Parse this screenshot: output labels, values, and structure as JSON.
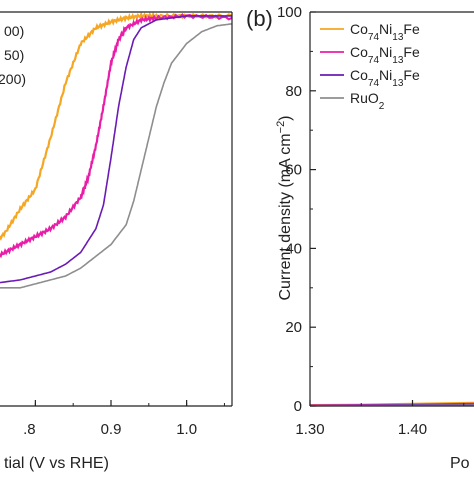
{
  "chart_data": [
    {
      "type": "line",
      "panel_label": "",
      "title": "",
      "xlabel": "tial (V vs RHE)",
      "ylabel": "",
      "xlim": [
        0.74,
        1.06
      ],
      "ylim": [
        0,
        1.0
      ],
      "x_ticks": [
        ".8",
        "0.9",
        "1.0"
      ],
      "x_tick_values": [
        0.8,
        0.9,
        1.0
      ],
      "legend": {
        "placement": "top-left (clipped)",
        "entries": [
          "00)",
          "50)",
          "200)"
        ]
      },
      "series": [
        {
          "name": "",
          "color": "#F5A623",
          "x": [
            0.74,
            0.76,
            0.78,
            0.8,
            0.82,
            0.84,
            0.86,
            0.88,
            0.9,
            0.92,
            0.94,
            0.96,
            1.0,
            1.06
          ],
          "y": [
            0.4,
            0.44,
            0.5,
            0.55,
            0.68,
            0.82,
            0.92,
            0.96,
            0.975,
            0.985,
            0.99,
            0.99,
            0.99,
            0.99
          ]
        },
        {
          "name": "",
          "color": "#E91EA8",
          "x": [
            0.74,
            0.76,
            0.78,
            0.8,
            0.82,
            0.84,
            0.86,
            0.87,
            0.88,
            0.89,
            0.9,
            0.91,
            0.92,
            0.94,
            0.96,
            1.0,
            1.06
          ],
          "y": [
            0.37,
            0.39,
            0.41,
            0.43,
            0.45,
            0.48,
            0.53,
            0.58,
            0.66,
            0.76,
            0.87,
            0.93,
            0.96,
            0.98,
            0.985,
            0.99,
            0.985
          ]
        },
        {
          "name": "",
          "color": "#6A1BB5",
          "x": [
            0.74,
            0.78,
            0.8,
            0.82,
            0.84,
            0.86,
            0.88,
            0.89,
            0.9,
            0.91,
            0.92,
            0.93,
            0.94,
            0.96,
            1.0,
            1.06
          ],
          "y": [
            0.31,
            0.32,
            0.33,
            0.34,
            0.36,
            0.39,
            0.45,
            0.51,
            0.63,
            0.76,
            0.86,
            0.93,
            0.96,
            0.98,
            0.99,
            0.99
          ]
        },
        {
          "name": "",
          "color": "#8E8E8E",
          "x": [
            0.74,
            0.78,
            0.8,
            0.82,
            0.84,
            0.86,
            0.88,
            0.9,
            0.92,
            0.93,
            0.94,
            0.95,
            0.96,
            0.97,
            0.98,
            1.0,
            1.02,
            1.04,
            1.06
          ],
          "y": [
            0.3,
            0.3,
            0.31,
            0.32,
            0.33,
            0.35,
            0.38,
            0.41,
            0.46,
            0.52,
            0.6,
            0.68,
            0.76,
            0.82,
            0.87,
            0.92,
            0.95,
            0.965,
            0.97
          ]
        }
      ]
    },
    {
      "type": "line",
      "panel_label": "(b)",
      "title": "",
      "xlabel": "Po",
      "ylabel": "Current density (mA cm⁻²)",
      "ylabel_main": "Current density (mA cm",
      "ylabel_sup": "−2",
      "ylabel_close": ")",
      "xlim": [
        1.3,
        1.46
      ],
      "ylim": [
        0,
        100
      ],
      "x_ticks": [
        "1.30",
        "1.40"
      ],
      "x_tick_values": [
        1.3,
        1.4
      ],
      "y_ticks": [
        "0",
        "20",
        "40",
        "60",
        "80",
        "100"
      ],
      "y_tick_values": [
        0,
        20,
        40,
        60,
        80,
        100
      ],
      "legend": {
        "placement": "top-right (clipped)",
        "entries": [
          {
            "base": "Co",
            "s1": "74",
            "mid": "Ni",
            "s2": "13",
            "tail": "Fe",
            "color": "#F5A623"
          },
          {
            "base": "Co",
            "s1": "74",
            "mid": "Ni",
            "s2": "13",
            "tail": "Fe",
            "color": "#E91EA8"
          },
          {
            "base": "Co",
            "s1": "74",
            "mid": "Ni",
            "s2": "13",
            "tail": "Fe",
            "color": "#6A1BB5"
          },
          {
            "base": "RuO",
            "s1": "2",
            "mid": "",
            "s2": "",
            "tail": "",
            "color": "#8E8E8E"
          }
        ]
      },
      "series": [
        {
          "name": "",
          "color": "#F5A623",
          "x": [
            1.3,
            1.35,
            1.4,
            1.46
          ],
          "y": [
            0.3,
            0.4,
            0.6,
            0.9
          ]
        },
        {
          "name": "",
          "color": "#E91EA8",
          "x": [
            1.3,
            1.35,
            1.4,
            1.46
          ],
          "y": [
            0.2,
            0.3,
            0.4,
            0.6
          ]
        },
        {
          "name": "",
          "color": "#6A1BB5",
          "x": [
            1.3,
            1.35,
            1.4,
            1.46
          ],
          "y": [
            0.1,
            0.2,
            0.3,
            0.4
          ]
        },
        {
          "name": "",
          "color": "#8E8E8E",
          "x": [
            1.3,
            1.35,
            1.4,
            1.46
          ],
          "y": [
            0.05,
            0.1,
            0.15,
            0.2
          ]
        }
      ]
    }
  ]
}
